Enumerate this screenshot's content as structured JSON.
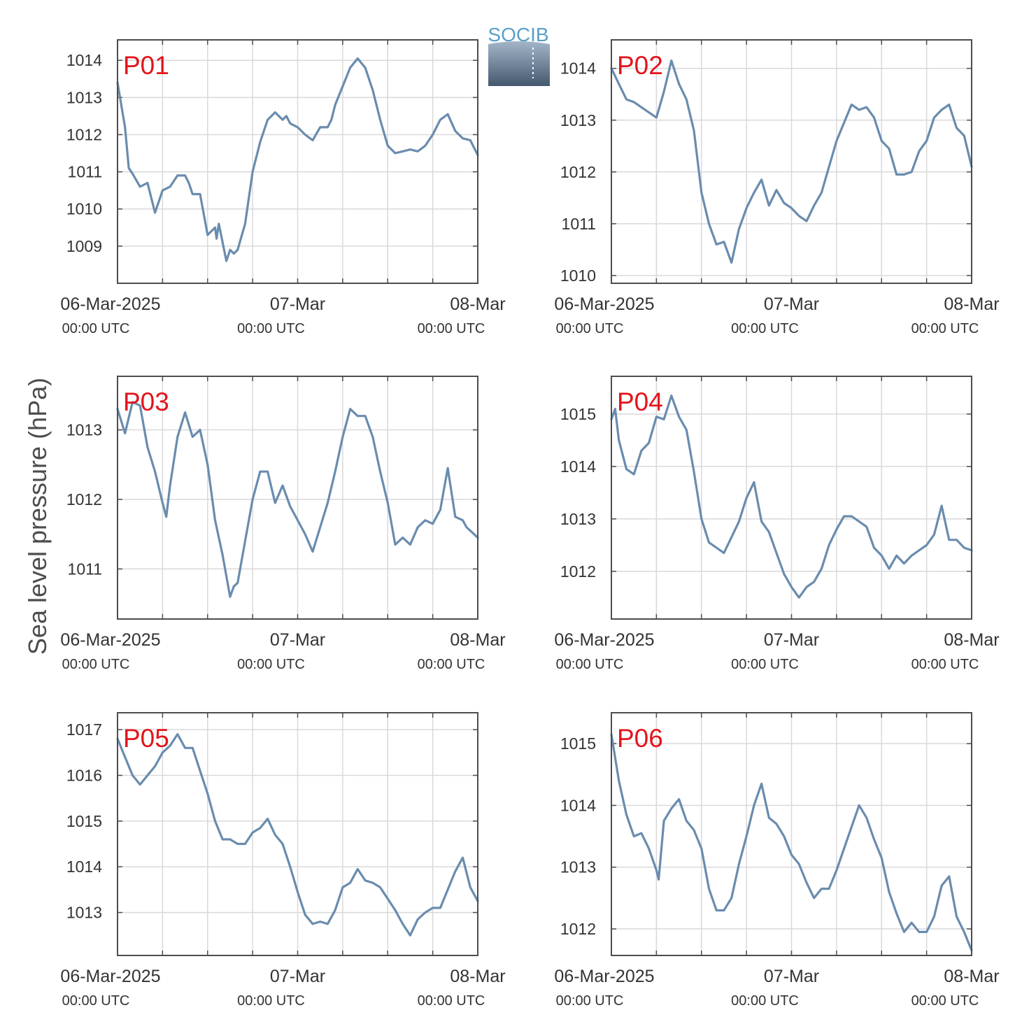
{
  "logo": {
    "text": "SOCIB"
  },
  "ylabel": "Sea level pressure (hPa)",
  "colors": {
    "line": "#6a8cae",
    "station_label": "#e3141c",
    "grid": "#d9d9d9",
    "axis": "#4d4d4d",
    "text": "#333333"
  },
  "time_axis": {
    "ticks": [
      {
        "label": "06-Mar-2025",
        "sublabel": "00:00 UTC"
      },
      {
        "label": "07-Mar",
        "sublabel": "00:00 UTC"
      },
      {
        "label": "08-Mar",
        "sublabel": "00:00 UTC"
      }
    ]
  },
  "chart_data": [
    {
      "type": "line",
      "station": "P01",
      "x_unit": "hours since 06-Mar-2025 00:00 UTC",
      "xlim": [
        0,
        48
      ],
      "ylim": [
        1008.0,
        1014.55
      ],
      "yticks": [
        1009,
        1010,
        1011,
        1012,
        1013,
        1014
      ],
      "x": [
        0,
        1,
        1.5,
        2,
        3,
        4,
        5,
        6,
        7,
        8,
        9,
        9.5,
        10,
        11,
        12,
        13,
        13.2,
        13.5,
        13.8,
        14,
        14.5,
        15,
        15.5,
        16,
        17,
        18,
        19,
        20,
        21,
        22,
        22.5,
        23,
        24,
        25,
        26,
        27,
        28,
        28.5,
        29,
        30,
        31,
        32,
        33,
        34,
        35,
        36,
        37,
        38,
        39,
        40,
        41,
        42,
        43,
        44,
        45,
        46,
        47,
        48
      ],
      "y": [
        1013.4,
        1012.2,
        1011.1,
        1010.95,
        1010.6,
        1010.7,
        1009.9,
        1010.5,
        1010.6,
        1010.9,
        1010.9,
        1010.7,
        1010.4,
        1010.4,
        1009.3,
        1009.5,
        1009.2,
        1009.6,
        1009.3,
        1009.1,
        1008.6,
        1008.9,
        1008.8,
        1008.9,
        1009.6,
        1011.0,
        1011.8,
        1012.4,
        1012.6,
        1012.4,
        1012.5,
        1012.3,
        1012.2,
        1012.0,
        1011.85,
        1012.2,
        1012.2,
        1012.4,
        1012.8,
        1013.3,
        1013.8,
        1014.05,
        1013.8,
        1013.2,
        1012.4,
        1011.7,
        1011.5,
        1011.55,
        1011.6,
        1011.55,
        1011.7,
        1012.0,
        1012.4,
        1012.55,
        1012.1,
        1011.9,
        1011.85,
        1011.45
      ]
    },
    {
      "type": "line",
      "station": "P02",
      "x_unit": "hours since 06-Mar-2025 00:00 UTC",
      "xlim": [
        0,
        48
      ],
      "ylim": [
        1009.85,
        1014.55
      ],
      "yticks": [
        1010,
        1011,
        1012,
        1013,
        1014
      ],
      "x": [
        0,
        1,
        2,
        3,
        4,
        5,
        6,
        7,
        8,
        9,
        10,
        11,
        12,
        13,
        14,
        15,
        16,
        17,
        17.5,
        18,
        19,
        20,
        21,
        22,
        23,
        24,
        25,
        26,
        27,
        28,
        29,
        30,
        31,
        32,
        33,
        34,
        35,
        36,
        37,
        38,
        39,
        40,
        41,
        42,
        43,
        44,
        45,
        46,
        47,
        48
      ],
      "y": [
        1014.0,
        1013.7,
        1013.4,
        1013.35,
        1013.25,
        1013.15,
        1013.05,
        1013.55,
        1014.15,
        1013.7,
        1013.4,
        1012.8,
        1011.6,
        1011.0,
        1010.6,
        1010.65,
        1010.25,
        1010.9,
        1011.1,
        1011.3,
        1011.6,
        1011.85,
        1011.35,
        1011.65,
        1011.4,
        1011.3,
        1011.15,
        1011.05,
        1011.35,
        1011.6,
        1012.1,
        1012.6,
        1012.95,
        1013.3,
        1013.2,
        1013.25,
        1013.05,
        1012.6,
        1012.45,
        1011.95,
        1011.95,
        1012.0,
        1012.4,
        1012.6,
        1013.05,
        1013.2,
        1013.3,
        1012.85,
        1012.7,
        1012.1
      ]
    },
    {
      "type": "line",
      "station": "P03",
      "x_unit": "hours since 06-Mar-2025 00:00 UTC",
      "xlim": [
        0,
        48
      ],
      "ylim": [
        1010.28,
        1013.77
      ],
      "yticks": [
        1011,
        1012,
        1013
      ],
      "x": [
        0,
        1,
        2,
        3,
        4,
        5,
        6,
        6.5,
        7,
        8,
        9,
        10,
        11,
        12,
        13,
        14,
        15,
        15.5,
        16,
        17,
        18,
        19,
        20,
        21,
        22,
        23,
        24,
        25,
        26,
        27,
        28,
        29,
        30,
        31,
        32,
        33,
        34,
        35,
        36,
        37,
        38,
        39,
        40,
        41,
        42,
        43,
        44,
        45,
        46,
        46.5,
        47,
        48
      ],
      "y": [
        1013.3,
        1012.95,
        1013.4,
        1013.35,
        1012.75,
        1012.4,
        1011.95,
        1011.75,
        1012.2,
        1012.9,
        1013.25,
        1012.9,
        1013.0,
        1012.5,
        1011.7,
        1011.2,
        1010.6,
        1010.75,
        1010.8,
        1011.4,
        1012.0,
        1012.4,
        1012.4,
        1011.95,
        1012.2,
        1011.9,
        1011.7,
        1011.5,
        1011.25,
        1011.6,
        1011.95,
        1012.4,
        1012.9,
        1013.3,
        1013.2,
        1013.2,
        1012.9,
        1012.4,
        1011.95,
        1011.35,
        1011.45,
        1011.35,
        1011.6,
        1011.7,
        1011.65,
        1011.85,
        1012.45,
        1011.75,
        1011.7,
        1011.6,
        1011.55,
        1011.45
      ]
    },
    {
      "type": "line",
      "station": "P04",
      "x_unit": "hours since 06-Mar-2025 00:00 UTC",
      "xlim": [
        0,
        48
      ],
      "ylim": [
        1011.09,
        1015.72
      ],
      "yticks": [
        1012,
        1013,
        1014,
        1015
      ],
      "x": [
        0,
        0.5,
        1,
        2,
        3,
        4,
        5,
        6,
        7,
        8,
        9,
        10,
        11,
        12,
        13,
        14,
        15,
        16,
        17,
        18,
        19,
        20,
        21,
        22,
        23,
        24,
        25,
        26,
        27,
        28,
        29,
        30,
        31,
        32,
        33,
        34,
        35,
        36,
        37,
        38,
        39,
        40,
        41,
        42,
        43,
        44,
        45,
        46,
        47,
        48
      ],
      "y": [
        1014.9,
        1015.1,
        1014.5,
        1013.95,
        1013.85,
        1014.3,
        1014.45,
        1014.95,
        1014.9,
        1015.35,
        1014.95,
        1014.7,
        1013.9,
        1013.0,
        1012.55,
        1012.45,
        1012.35,
        1012.65,
        1012.95,
        1013.4,
        1013.7,
        1012.95,
        1012.75,
        1012.35,
        1011.95,
        1011.7,
        1011.5,
        1011.7,
        1011.8,
        1012.05,
        1012.5,
        1012.8,
        1013.05,
        1013.05,
        1012.95,
        1012.85,
        1012.45,
        1012.3,
        1012.05,
        1012.3,
        1012.15,
        1012.3,
        1012.4,
        1012.5,
        1012.7,
        1013.25,
        1012.6,
        1012.6,
        1012.45,
        1012.4
      ]
    },
    {
      "type": "line",
      "station": "P05",
      "x_unit": "hours since 06-Mar-2025 00:00 UTC",
      "xlim": [
        0,
        48
      ],
      "ylim": [
        1012.06,
        1017.37
      ],
      "yticks": [
        1013,
        1014,
        1015,
        1016,
        1017
      ],
      "x": [
        0,
        1,
        2,
        3,
        4,
        5,
        6,
        7,
        8,
        9,
        10,
        11,
        12,
        13,
        14,
        15,
        16,
        17,
        18,
        19,
        20,
        21,
        22,
        23,
        24,
        25,
        26,
        27,
        28,
        29,
        30,
        31,
        32,
        33,
        34,
        35,
        36,
        37,
        38,
        39,
        40,
        41,
        42,
        43,
        44,
        45,
        46,
        47,
        48
      ],
      "y": [
        1016.8,
        1016.4,
        1016.0,
        1015.8,
        1016.0,
        1016.2,
        1016.5,
        1016.65,
        1016.9,
        1016.6,
        1016.6,
        1016.1,
        1015.6,
        1015.0,
        1014.6,
        1014.6,
        1014.5,
        1014.5,
        1014.75,
        1014.85,
        1015.05,
        1014.7,
        1014.5,
        1014.0,
        1013.45,
        1012.95,
        1012.75,
        1012.8,
        1012.75,
        1013.05,
        1013.55,
        1013.65,
        1013.95,
        1013.7,
        1013.65,
        1013.55,
        1013.3,
        1013.05,
        1012.75,
        1012.5,
        1012.85,
        1013.0,
        1013.1,
        1013.1,
        1013.5,
        1013.9,
        1014.2,
        1013.55,
        1013.25
      ]
    },
    {
      "type": "line",
      "station": "P06",
      "x_unit": "hours since 06-Mar-2025 00:00 UTC",
      "xlim": [
        0,
        48
      ],
      "ylim": [
        1011.57,
        1015.5
      ],
      "yticks": [
        1012,
        1013,
        1014,
        1015
      ],
      "x": [
        0,
        1,
        2,
        3,
        4,
        5,
        6,
        6.3,
        7,
        8,
        9,
        10,
        11,
        12,
        13,
        14,
        15,
        16,
        17,
        18,
        19,
        20,
        21,
        22,
        23,
        24,
        25,
        26,
        27,
        28,
        29,
        30,
        31,
        32,
        33,
        34,
        35,
        36,
        37,
        38,
        39,
        40,
        41,
        42,
        43,
        44,
        45,
        46,
        47,
        48
      ],
      "y": [
        1015.15,
        1014.4,
        1013.85,
        1013.5,
        1013.55,
        1013.3,
        1012.95,
        1012.8,
        1013.75,
        1013.95,
        1014.1,
        1013.75,
        1013.6,
        1013.3,
        1012.65,
        1012.3,
        1012.3,
        1012.5,
        1013.05,
        1013.5,
        1014.0,
        1014.35,
        1013.8,
        1013.7,
        1013.5,
        1013.2,
        1013.05,
        1012.75,
        1012.5,
        1012.65,
        1012.65,
        1012.95,
        1013.3,
        1013.65,
        1014.0,
        1013.8,
        1013.45,
        1013.15,
        1012.6,
        1012.25,
        1011.95,
        1012.1,
        1011.95,
        1011.95,
        1012.2,
        1012.7,
        1012.85,
        1012.2,
        1011.95,
        1011.65
      ]
    }
  ]
}
